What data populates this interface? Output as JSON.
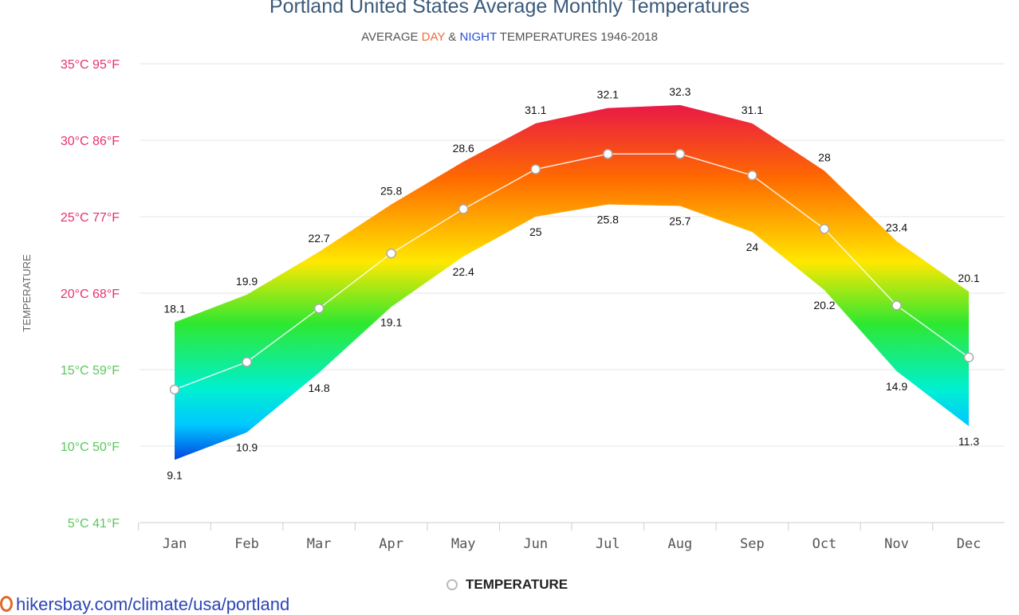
{
  "chart_data": {
    "type": "area",
    "title": "Portland United States Average Monthly Temperatures",
    "subtitle": {
      "pre": "AVERAGE ",
      "day": "DAY",
      "amp": " & ",
      "night": "NIGHT",
      "post": " TEMPERATURES 1946-2018"
    },
    "ylabel": "TEMPERATURE",
    "ylim": [
      5,
      35
    ],
    "yticks": [
      {
        "value": 35,
        "label": "35°C 95°F",
        "color": "#e8336b"
      },
      {
        "value": 30,
        "label": "30°C 86°F",
        "color": "#e8336b"
      },
      {
        "value": 25,
        "label": "25°C 77°F",
        "color": "#e8336b"
      },
      {
        "value": 20,
        "label": "20°C 68°F",
        "color": "#e8336b"
      },
      {
        "value": 15,
        "label": "15°C 59°F",
        "color": "#5cc85c"
      },
      {
        "value": 10,
        "label": "10°C 50°F",
        "color": "#5cc85c"
      },
      {
        "value": 5,
        "label": "5°C 41°F",
        "color": "#5cc85c"
      }
    ],
    "grid": true,
    "categories": [
      "Jan",
      "Feb",
      "Mar",
      "Apr",
      "May",
      "Jun",
      "Jul",
      "Aug",
      "Sep",
      "Oct",
      "Nov",
      "Dec"
    ],
    "day": [
      18.1,
      19.9,
      22.7,
      25.8,
      28.6,
      31.1,
      32.1,
      32.3,
      31.1,
      28,
      23.4,
      20.1
    ],
    "night": [
      9.1,
      10.9,
      14.8,
      19.1,
      22.4,
      25,
      25.8,
      25.7,
      24,
      20.2,
      14.9,
      11.3
    ],
    "series": [
      {
        "name": "TEMPERATURE",
        "values": [
          13.7,
          15.5,
          19.0,
          22.6,
          25.5,
          28.1,
          29.1,
          29.1,
          27.7,
          24.2,
          19.2,
          15.8
        ]
      }
    ],
    "legend": "bottom-center"
  },
  "source": "hikersbay.com/climate/usa/portland"
}
